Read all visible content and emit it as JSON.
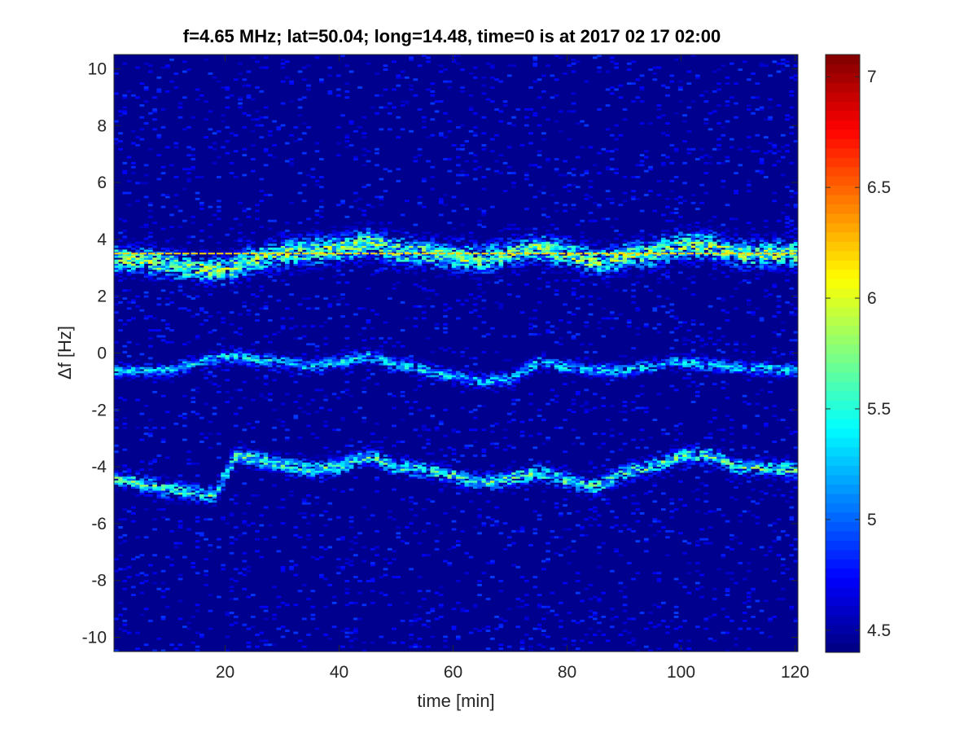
{
  "chart_data": {
    "type": "heatmap",
    "title": "f=4.65 MHz;  lat=50.04; long=14.48, time=0 is at 2017 02 17 02:00",
    "xlabel": "time [min]",
    "ylabel": "Δf [Hz]",
    "xlim": [
      0.5,
      120.5
    ],
    "ylim": [
      -10.5,
      10.5
    ],
    "x_ticks": [
      20,
      40,
      60,
      80,
      100,
      120
    ],
    "y_ticks": [
      -10,
      -8,
      -6,
      -4,
      -2,
      0,
      2,
      4,
      6,
      8,
      10
    ],
    "colorbar": {
      "colormap": "jet",
      "range": [
        4.4,
        7.1
      ],
      "ticks": [
        4.5,
        5,
        5.5,
        6,
        6.5,
        7
      ]
    },
    "grid": false,
    "background_value": 4.4,
    "carrier_line": {
      "df": 3.5,
      "value": 6.2
    },
    "echo_traces": [
      {
        "band": "upper",
        "points": [
          [
            1,
            3.3
          ],
          [
            5,
            3.3
          ],
          [
            10,
            3.1
          ],
          [
            15,
            3.0
          ],
          [
            20,
            2.9
          ],
          [
            25,
            3.3
          ],
          [
            30,
            3.5
          ],
          [
            35,
            3.6
          ],
          [
            40,
            3.7
          ],
          [
            45,
            3.9
          ],
          [
            50,
            3.6
          ],
          [
            55,
            3.5
          ],
          [
            60,
            3.4
          ],
          [
            65,
            3.3
          ],
          [
            70,
            3.5
          ],
          [
            75,
            3.7
          ],
          [
            80,
            3.5
          ],
          [
            85,
            3.2
          ],
          [
            90,
            3.4
          ],
          [
            95,
            3.5
          ],
          [
            100,
            3.8
          ],
          [
            105,
            3.8
          ],
          [
            110,
            3.5
          ],
          [
            115,
            3.5
          ],
          [
            120,
            3.5
          ]
        ],
        "spread": 0.5,
        "peak": 6.0
      },
      {
        "band": "middle",
        "points": [
          [
            1,
            -0.6
          ],
          [
            10,
            -0.6
          ],
          [
            20,
            -0.1
          ],
          [
            30,
            -0.3
          ],
          [
            35,
            -0.5
          ],
          [
            40,
            -0.3
          ],
          [
            45,
            -0.1
          ],
          [
            50,
            -0.4
          ],
          [
            55,
            -0.6
          ],
          [
            60,
            -0.8
          ],
          [
            65,
            -1.0
          ],
          [
            70,
            -0.9
          ],
          [
            75,
            -0.3
          ],
          [
            80,
            -0.5
          ],
          [
            85,
            -0.6
          ],
          [
            90,
            -0.6
          ],
          [
            100,
            -0.3
          ],
          [
            110,
            -0.5
          ],
          [
            120,
            -0.6
          ]
        ],
        "spread": 0.25,
        "peak": 5.5
      },
      {
        "band": "lower",
        "points": [
          [
            1,
            -4.4
          ],
          [
            10,
            -4.8
          ],
          [
            18,
            -5.0
          ],
          [
            22,
            -3.6
          ],
          [
            30,
            -3.9
          ],
          [
            35,
            -4.1
          ],
          [
            40,
            -4.0
          ],
          [
            45,
            -3.6
          ],
          [
            50,
            -4.0
          ],
          [
            55,
            -4.1
          ],
          [
            60,
            -4.3
          ],
          [
            65,
            -4.6
          ],
          [
            70,
            -4.4
          ],
          [
            75,
            -4.2
          ],
          [
            80,
            -4.5
          ],
          [
            85,
            -4.7
          ],
          [
            90,
            -4.2
          ],
          [
            95,
            -4.0
          ],
          [
            100,
            -3.6
          ],
          [
            105,
            -3.6
          ],
          [
            110,
            -4.0
          ],
          [
            120,
            -4.1
          ]
        ],
        "spread": 0.3,
        "peak": 5.8
      }
    ]
  }
}
